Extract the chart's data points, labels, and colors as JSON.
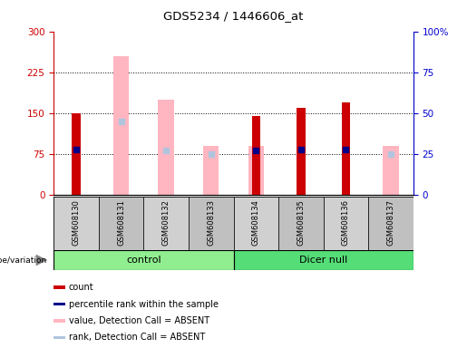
{
  "title": "GDS5234 / 1446606_at",
  "samples": [
    "GSM608130",
    "GSM608131",
    "GSM608132",
    "GSM608133",
    "GSM608134",
    "GSM608135",
    "GSM608136",
    "GSM608137"
  ],
  "count": [
    150,
    null,
    null,
    null,
    145,
    160,
    170,
    null
  ],
  "percentile_rank": [
    28,
    null,
    null,
    null,
    27,
    28,
    28,
    null
  ],
  "absent_value": [
    null,
    255,
    175,
    90,
    90,
    null,
    null,
    90
  ],
  "absent_rank": [
    null,
    45,
    27,
    25,
    null,
    null,
    null,
    25
  ],
  "left_yticks": [
    0,
    75,
    150,
    225,
    300
  ],
  "right_yticks": [
    0,
    25,
    50,
    75,
    100
  ],
  "left_color": "#CC0000",
  "right_color": "#0000CC",
  "absent_value_color": "#FFB6C1",
  "absent_rank_color": "#B0C4DE",
  "count_color": "#CC0000",
  "rank_color": "#00008B",
  "genotype_label": "genotype/variation",
  "group_info": [
    {
      "name": "control",
      "start": 0,
      "end": 3,
      "color": "#90EE90"
    },
    {
      "name": "Dicer null",
      "start": 4,
      "end": 7,
      "color": "#55DD77"
    }
  ],
  "legend_items": [
    {
      "label": "count",
      "color": "#CC0000"
    },
    {
      "label": "percentile rank within the sample",
      "color": "#00008B"
    },
    {
      "label": "value, Detection Call = ABSENT",
      "color": "#FFB6C1"
    },
    {
      "label": "rank, Detection Call = ABSENT",
      "color": "#B0C4DE"
    }
  ]
}
